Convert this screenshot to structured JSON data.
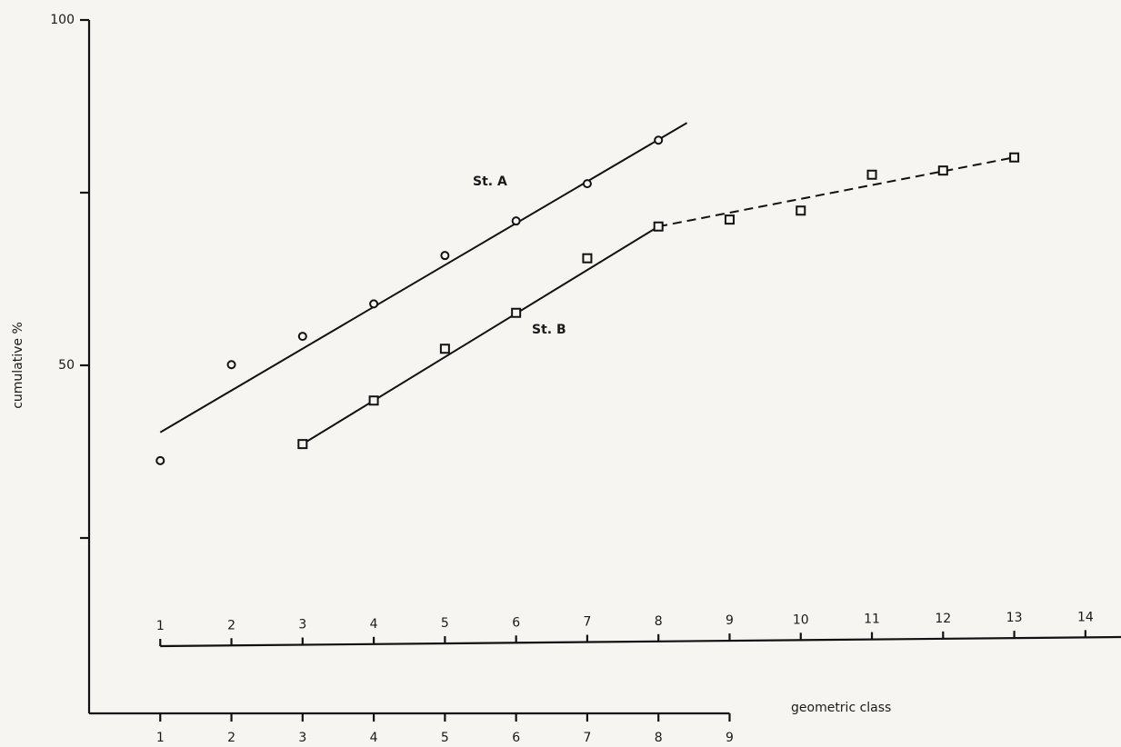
{
  "chart_data": {
    "type": "scatter",
    "y_label": "cumulative %",
    "x_label": "geometric class",
    "ylim": [
      0,
      100
    ],
    "yticks": [
      50,
      100
    ],
    "yminor_ticks": [
      25,
      75
    ],
    "xlim": [
      0,
      14.5
    ],
    "xticks": [
      1,
      2,
      3,
      4,
      5,
      6,
      7,
      8,
      9
    ],
    "xticks_top": [
      1,
      2,
      3,
      4,
      5,
      6,
      7,
      8,
      9,
      10,
      11,
      12,
      13,
      14
    ],
    "series": [
      {
        "name": "St. A",
        "marker": "circle",
        "color": "#111111",
        "x": [
          1,
          2,
          3,
          4,
          5,
          6,
          7,
          8
        ],
        "values": [
          36.2,
          50.1,
          54.2,
          58.9,
          65.9,
          70.9,
          76.3,
          82.6
        ],
        "fit": {
          "x": [
            1,
            8.4
          ],
          "values": [
            40.3,
            85.1
          ],
          "dashed": false
        }
      },
      {
        "name": "St. B",
        "marker": "square",
        "color": "#111111",
        "x": [
          3,
          4,
          5,
          6,
          7,
          8,
          9,
          10,
          11,
          12,
          13
        ],
        "values": [
          38.6,
          44.9,
          52.4,
          57.6,
          65.5,
          70.1,
          71.1,
          72.4,
          77.6,
          78.2,
          80.1
        ],
        "fit": {
          "x": [
            3,
            8
          ],
          "values": [
            38.6,
            70.1
          ],
          "dashed": false
        },
        "fit_extension": {
          "x": [
            8,
            13
          ],
          "values": [
            70.1,
            80.1
          ],
          "dashed": true
        }
      }
    ]
  }
}
